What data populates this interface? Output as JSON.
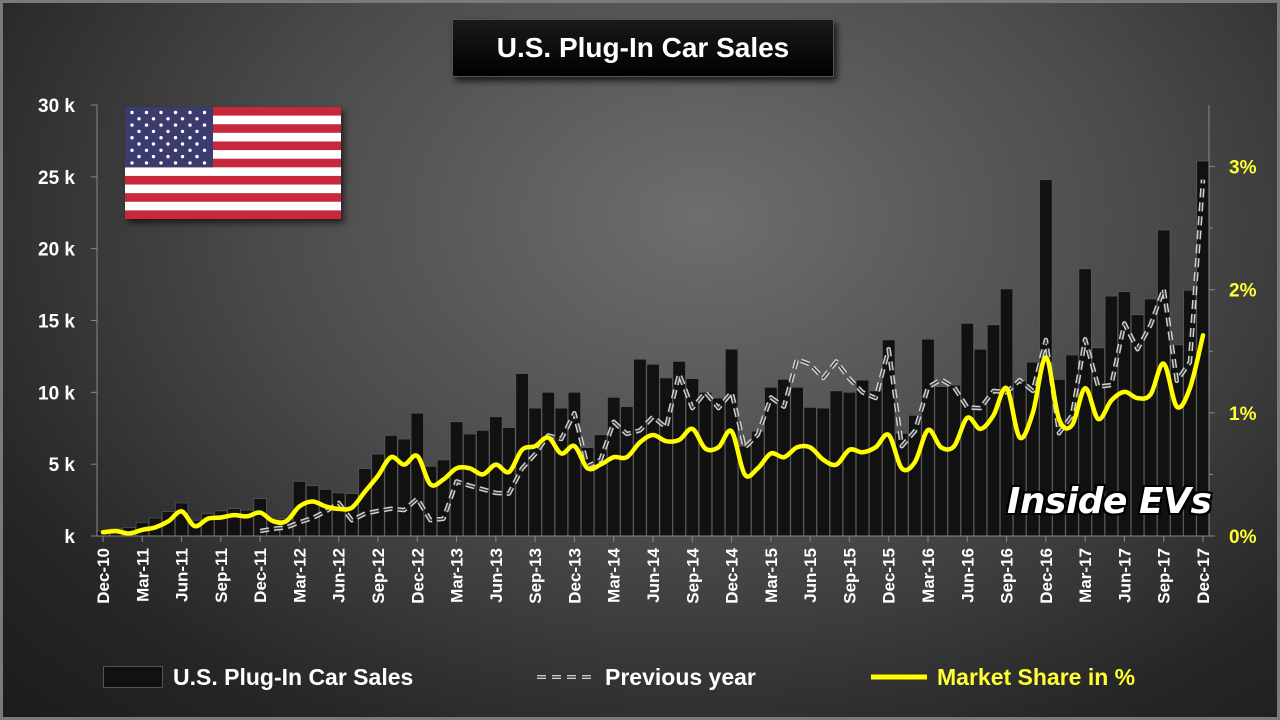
{
  "chart_data": {
    "type": "bar",
    "title": "U.S. Plug-In Car Sales",
    "watermark": "Inside EVs",
    "months": [
      "Dec-10",
      "Jan-11",
      "Feb-11",
      "Mar-11",
      "Apr-11",
      "May-11",
      "Jun-11",
      "Jul-11",
      "Aug-11",
      "Sep-11",
      "Oct-11",
      "Nov-11",
      "Dec-11",
      "Jan-12",
      "Feb-12",
      "Mar-12",
      "Apr-12",
      "May-12",
      "Jun-12",
      "Jul-12",
      "Aug-12",
      "Sep-12",
      "Oct-12",
      "Nov-12",
      "Dec-12",
      "Jan-13",
      "Feb-13",
      "Mar-13",
      "Apr-13",
      "May-13",
      "Jun-13",
      "Jul-13",
      "Aug-13",
      "Sep-13",
      "Oct-13",
      "Nov-13",
      "Dec-13",
      "Jan-14",
      "Feb-14",
      "Mar-14",
      "Apr-14",
      "May-14",
      "Jun-14",
      "Jul-14",
      "Aug-14",
      "Sep-14",
      "Oct-14",
      "Nov-14",
      "Dec-14",
      "Jan-15",
      "Feb-15",
      "Mar-15",
      "Apr-15",
      "May-15",
      "Jun-15",
      "Jul-15",
      "Aug-15",
      "Sep-15",
      "Oct-15",
      "Nov-15",
      "Dec-15",
      "Jan-16",
      "Feb-16",
      "Mar-16",
      "Apr-16",
      "May-16",
      "Jun-16",
      "Jul-16",
      "Aug-16",
      "Sep-16",
      "Oct-16",
      "Nov-16",
      "Dec-16",
      "Jan-17",
      "Feb-17",
      "Mar-17",
      "Apr-17",
      "May-17",
      "Jun-17",
      "Jul-17",
      "Aug-17",
      "Sep-17",
      "Oct-17",
      "Nov-17",
      "Dec-17"
    ],
    "x_tick_labels": [
      "Dec-10",
      "Mar-11",
      "Jun-11",
      "Sep-11",
      "Dec-11",
      "Mar-12",
      "Jun-12",
      "Sep-12",
      "Dec-12",
      "Mar-13",
      "Jun-13",
      "Sep-13",
      "Dec-13",
      "Mar-14",
      "Jun-14",
      "Sep-14",
      "Dec-14",
      "Mar-15",
      "Jun-15",
      "Sep-15",
      "Dec-15",
      "Mar-16",
      "Jun-16",
      "Sep-16",
      "Dec-16",
      "Mar-17",
      "Jun-17",
      "Sep-17",
      "Dec-17"
    ],
    "y_left": {
      "ticks": [
        "30 k",
        "25 k",
        "20 k",
        "15 k",
        "10 k",
        "5 k",
        "k"
      ],
      "ylim": [
        0,
        30000
      ]
    },
    "y_right": {
      "ticks": [
        "3%",
        "2%",
        "1%",
        "0%"
      ],
      "ylim": [
        0,
        3.5
      ]
    },
    "series": [
      {
        "name": "U.S. Plug-In Car Sales",
        "type": "bar",
        "color": "#111111",
        "values": [
          345,
          500,
          600,
          950,
          1250,
          1700,
          2300,
          1100,
          1550,
          1750,
          1900,
          1800,
          2600,
          1100,
          1200,
          3800,
          3500,
          3250,
          3000,
          2950,
          4700,
          5700,
          7000,
          6750,
          8550,
          4850,
          5300,
          7950,
          7100,
          7350,
          8300,
          7550,
          11300,
          8900,
          10000,
          8900,
          10000,
          6150,
          7050,
          9650,
          9000,
          12300,
          11950,
          11000,
          12150,
          10950,
          10000,
          9600,
          13000,
          6250,
          7300,
          10350,
          10900,
          10350,
          8950,
          8900,
          10100,
          10000,
          10850,
          10100,
          13650,
          7150,
          8400,
          13700,
          10400,
          10500,
          14800,
          13000,
          14700,
          17200,
          10800,
          12100,
          24800,
          10900,
          12600,
          18600,
          13100,
          16700,
          17000,
          15400,
          16500,
          21300,
          13300,
          17100,
          26100
        ]
      },
      {
        "name": "Previous year",
        "type": "line",
        "color": "#cccccc",
        "dash": true,
        "values": [
          null,
          null,
          null,
          null,
          null,
          null,
          null,
          null,
          null,
          null,
          null,
          null,
          345,
          500,
          600,
          950,
          1250,
          1700,
          2300,
          1100,
          1550,
          1750,
          1900,
          1800,
          2600,
          1100,
          1200,
          3800,
          3500,
          3250,
          3000,
          2950,
          4700,
          5700,
          7000,
          6750,
          8550,
          4850,
          5300,
          7950,
          7100,
          7350,
          8300,
          7550,
          11300,
          8900,
          10000,
          8900,
          10000,
          6150,
          7050,
          9650,
          9000,
          12300,
          11950,
          11000,
          12150,
          10950,
          10000,
          9600,
          13000,
          6250,
          7300,
          10350,
          10900,
          10350,
          8950,
          8900,
          10100,
          10000,
          10850,
          10100,
          13650,
          7150,
          8400,
          13700,
          10400,
          10500,
          14800,
          13000,
          14700,
          17200,
          10800,
          12100,
          24800
        ]
      },
      {
        "name": "Market Share in %",
        "type": "line",
        "color": "#ffff00",
        "axis": "right",
        "values": [
          0.03,
          0.04,
          0.02,
          0.05,
          0.07,
          0.12,
          0.2,
          0.08,
          0.14,
          0.15,
          0.17,
          0.16,
          0.19,
          0.12,
          0.12,
          0.24,
          0.28,
          0.24,
          0.22,
          0.23,
          0.36,
          0.49,
          0.64,
          0.58,
          0.65,
          0.42,
          0.46,
          0.55,
          0.55,
          0.5,
          0.58,
          0.52,
          0.7,
          0.73,
          0.8,
          0.67,
          0.73,
          0.55,
          0.58,
          0.64,
          0.64,
          0.76,
          0.82,
          0.77,
          0.78,
          0.87,
          0.71,
          0.72,
          0.85,
          0.5,
          0.55,
          0.67,
          0.64,
          0.72,
          0.72,
          0.62,
          0.58,
          0.7,
          0.68,
          0.72,
          0.82,
          0.55,
          0.6,
          0.86,
          0.72,
          0.73,
          0.96,
          0.87,
          0.98,
          1.2,
          0.8,
          1.0,
          1.45,
          0.95,
          0.9,
          1.2,
          0.95,
          1.1,
          1.17,
          1.12,
          1.15,
          1.4,
          1.05,
          1.2,
          1.63
        ]
      }
    ],
    "legend": {
      "position": "bottom"
    }
  },
  "colors": {
    "bar": "#111111",
    "prev_line": "#cccccc",
    "share_line": "#ffff00",
    "right_axis_text": "#ffff33",
    "left_axis_text": "#ffffff"
  }
}
